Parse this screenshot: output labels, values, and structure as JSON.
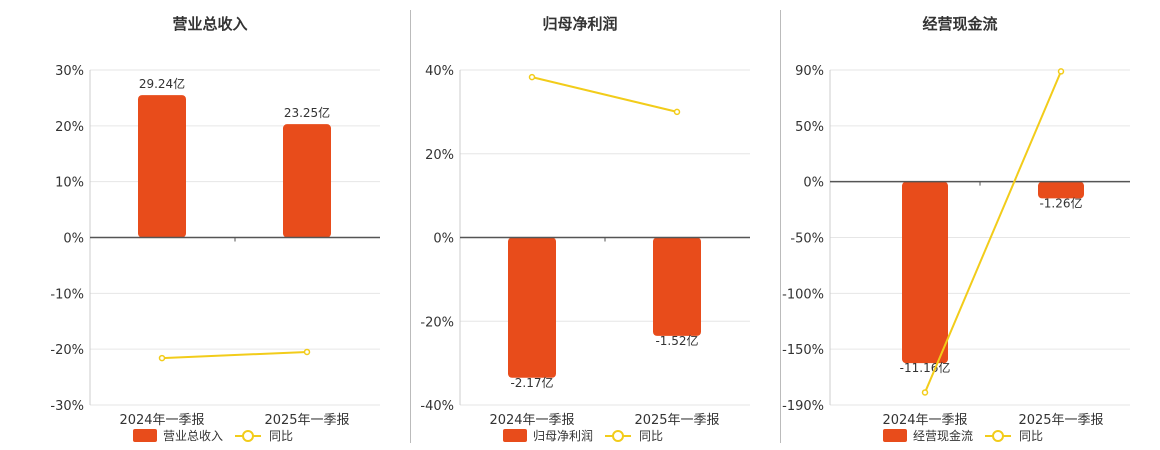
{
  "colors": {
    "bar": "#e84c1b",
    "line": "#f2cc1a",
    "grid": "#e6e6e6",
    "axis": "#555555",
    "divider": "#bbbbbb"
  },
  "legend": {
    "yoy_label": "同比"
  },
  "chart_data": [
    {
      "type": "bar",
      "title": "营业总收入",
      "categories": [
        "2024年一季报",
        "2025年一季报"
      ],
      "yaxis": {
        "ticks": [
          "30%",
          "20%",
          "10%",
          "0%",
          "-10%",
          "-20%",
          "-30%"
        ],
        "range": [
          -30,
          30
        ]
      },
      "series": [
        {
          "name": "营业总收入",
          "kind": "bar",
          "plot_values": [
            25.5,
            20.3
          ],
          "labels": [
            "29.24亿",
            "23.25亿"
          ]
        },
        {
          "name": "同比",
          "kind": "line",
          "values": [
            -21.6,
            -20.5
          ]
        }
      ],
      "grid": true,
      "legend_position": "bottom"
    },
    {
      "type": "bar",
      "title": "归母净利润",
      "categories": [
        "2024年一季报",
        "2025年一季报"
      ],
      "yaxis": {
        "ticks": [
          "40%",
          "20%",
          "0%",
          "-20%",
          "-40%"
        ],
        "range": [
          -40,
          40
        ]
      },
      "series": [
        {
          "name": "归母净利润",
          "kind": "bar",
          "plot_values": [
            -33.5,
            -23.5
          ],
          "labels": [
            "-2.17亿",
            "-1.52亿"
          ]
        },
        {
          "name": "同比",
          "kind": "line",
          "values": [
            38.3,
            30.0
          ]
        }
      ],
      "grid": true,
      "legend_position": "bottom"
    },
    {
      "type": "bar",
      "title": "经营现金流",
      "categories": [
        "2024年一季报",
        "2025年一季报"
      ],
      "yaxis": {
        "ticks": [
          "90%",
          "50%",
          "0%",
          "-50%",
          "-100%",
          "-150%",
          "-190%"
        ],
        "values": [
          90,
          50,
          0,
          -50,
          -100,
          -150,
          -190
        ]
      },
      "series": [
        {
          "name": "经营现金流",
          "kind": "bar",
          "plot_values": [
            -160,
            -15
          ],
          "labels": [
            "-11.16亿",
            "-1.26亿"
          ]
        },
        {
          "name": "同比",
          "kind": "line",
          "values": [
            -181,
            89
          ]
        }
      ],
      "grid": true,
      "legend_position": "bottom"
    }
  ]
}
